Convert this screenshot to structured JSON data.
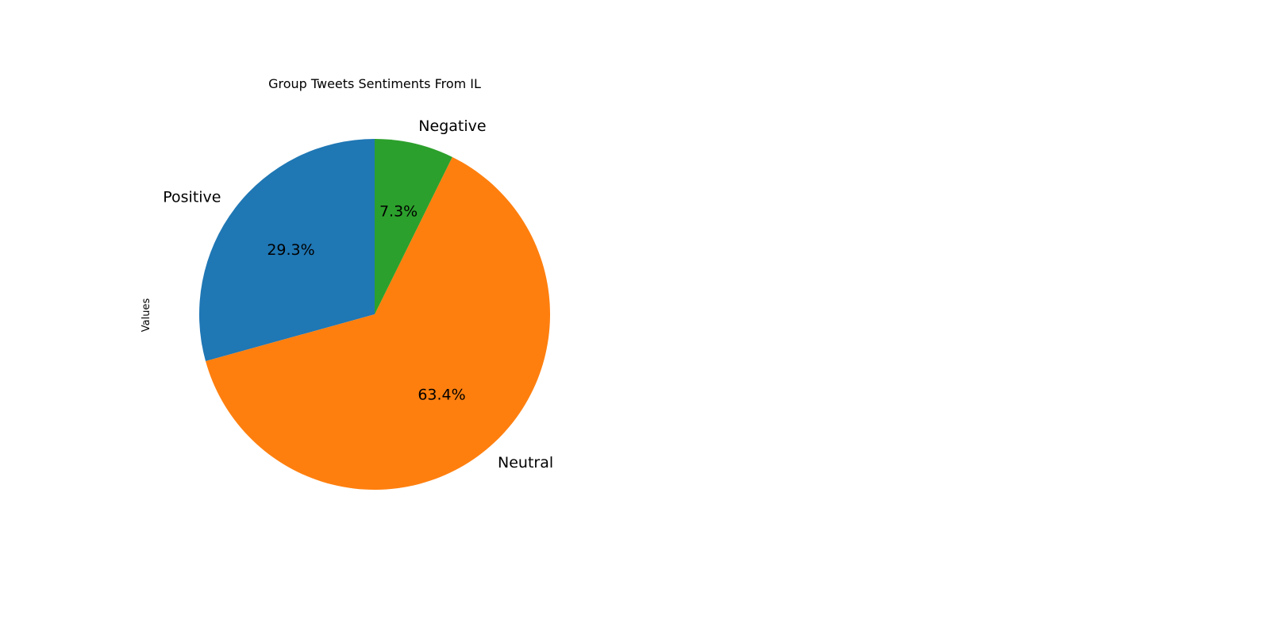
{
  "chart_data": {
    "type": "pie",
    "title": "Group Tweets Sentiments From IL",
    "ylabel": "Values",
    "categories": [
      "Positive",
      "Neutral",
      "Negative"
    ],
    "values": [
      29.3,
      63.4,
      7.3
    ],
    "percent_labels": [
      "29.3%",
      "63.4%",
      "7.3%"
    ],
    "colors": [
      "#1f77b4",
      "#ff7f0e",
      "#2ca02c"
    ],
    "start_angle_deg": 90,
    "direction": "counterclockwise",
    "legend": "none"
  }
}
